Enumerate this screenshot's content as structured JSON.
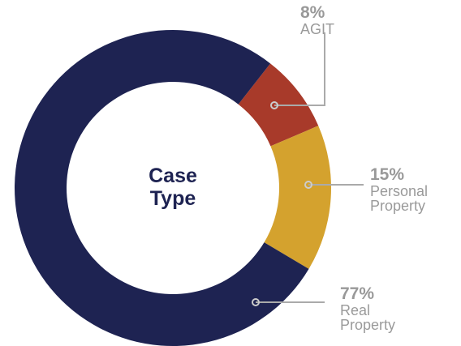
{
  "chart_data": {
    "type": "donut",
    "title": "Case Type",
    "categories": [
      "AGIT",
      "Personal Property",
      "Real Property"
    ],
    "values": [
      8,
      15,
      77
    ],
    "value_labels": [
      "8%",
      "15%",
      "77%"
    ],
    "colors": [
      "#a83a2a",
      "#d4a22e",
      "#1e2352"
    ]
  }
}
